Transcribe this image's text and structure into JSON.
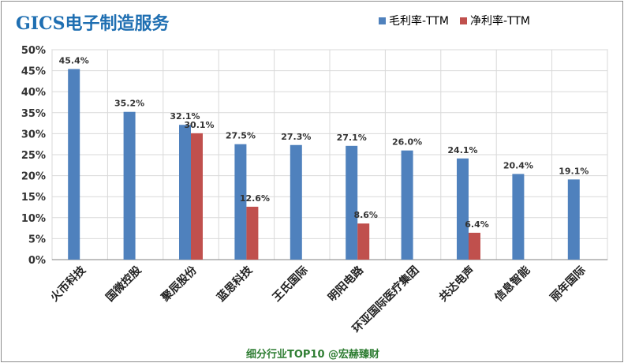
{
  "title": "GICS电子制造服务",
  "footer": "细分行业TOP10 @宏赫臻财",
  "colors": {
    "title": "#1f6fb2",
    "footer": "#2e7d32",
    "gross": "#4f81bd",
    "net": "#c0504d",
    "grid": "#d9d9d9"
  },
  "chart_data": {
    "type": "bar",
    "categories": [
      "火币科技",
      "国微控股",
      "聚辰股份",
      "蓝思科技",
      "王氏国际",
      "明阳电路",
      "环亚国际医疗集团",
      "共达电声",
      "信息智能",
      "丽年国际"
    ],
    "series": [
      {
        "name": "毛利率-TTM",
        "color": "#4f81bd",
        "values": [
          45.4,
          35.2,
          32.1,
          27.5,
          27.3,
          27.1,
          26.0,
          24.1,
          20.4,
          19.1
        ],
        "labels": [
          "45.4%",
          "35.2%",
          "32.1%",
          "27.5%",
          "27.3%",
          "27.1%",
          "26.0%",
          "24.1%",
          "20.4%",
          "19.1%"
        ]
      },
      {
        "name": "净利率-TTM",
        "color": "#c0504d",
        "values": [
          null,
          null,
          30.1,
          12.6,
          null,
          8.6,
          null,
          6.4,
          null,
          null
        ],
        "labels": [
          null,
          null,
          "30.1%",
          "12.6%",
          null,
          "8.6%",
          null,
          "6.4%",
          null,
          null
        ]
      }
    ],
    "ylim": [
      0,
      50
    ],
    "yticks": [
      "0%",
      "5%",
      "10%",
      "15%",
      "20%",
      "25%",
      "30%",
      "35%",
      "40%",
      "45%",
      "50%"
    ],
    "grid": true,
    "legend": "top-right"
  }
}
